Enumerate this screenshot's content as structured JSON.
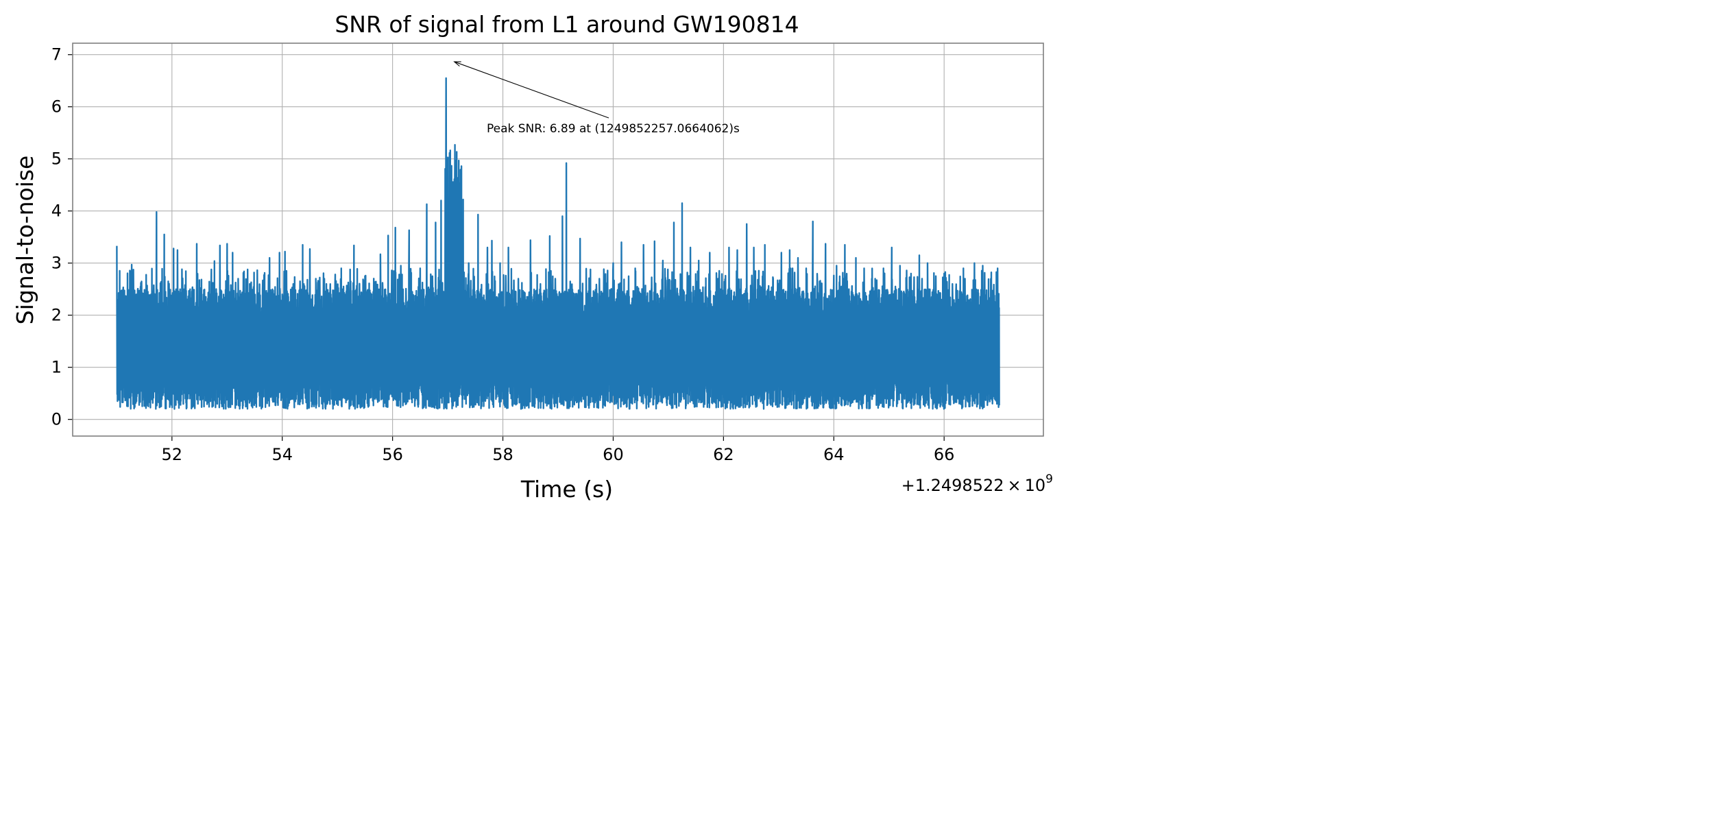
{
  "chart_data": {
    "type": "line",
    "title": "SNR of signal from L1 around GW190814",
    "xlabel": "Time (s)",
    "ylabel": "Signal-to-noise",
    "x_offset_label": "+1.2498522",
    "x_offset_exponent": "9",
    "x_offset_times": "×",
    "x_offset_base": "10",
    "xlim": [
      50.2,
      67.8
    ],
    "ylim": [
      -0.32,
      7.22
    ],
    "xticks": [
      52,
      54,
      56,
      58,
      60,
      62,
      64,
      66
    ],
    "yticks": [
      0,
      1,
      2,
      3,
      4,
      5,
      6,
      7
    ],
    "grid": true,
    "series_color": "#1f77b4",
    "annotation": {
      "text": "Peak SNR: 6.89 at (1249852257.0664062)s",
      "peak_x": 57.07,
      "peak_y": 6.89
    },
    "series": [
      {
        "x_start": 51.0,
        "x_end": 67.0,
        "baseline_band": [
          0.2,
          2.5
        ],
        "spikes": [
          [
            51.0,
            3.33
          ],
          [
            51.1,
            2.45
          ],
          [
            51.27,
            2.97
          ],
          [
            51.43,
            2.55
          ],
          [
            51.55,
            2.57
          ],
          [
            51.72,
            3.98
          ],
          [
            51.86,
            3.55
          ],
          [
            52.03,
            3.28
          ],
          [
            52.1,
            3.25
          ],
          [
            52.18,
            2.3
          ],
          [
            52.37,
            2.52
          ],
          [
            52.45,
            3.37
          ],
          [
            52.57,
            2.4
          ],
          [
            52.77,
            3.04
          ],
          [
            52.87,
            3.34
          ],
          [
            53.0,
            3.37
          ],
          [
            53.1,
            3.2
          ],
          [
            53.2,
            2.7
          ],
          [
            53.41,
            2.6
          ],
          [
            53.58,
            2.23
          ],
          [
            53.77,
            3.1
          ],
          [
            53.95,
            3.2
          ],
          [
            54.05,
            3.22
          ],
          [
            54.2,
            2.6
          ],
          [
            54.37,
            3.35
          ],
          [
            54.5,
            3.27
          ],
          [
            54.65,
            2.66
          ],
          [
            54.8,
            2.6
          ],
          [
            55.07,
            2.9
          ],
          [
            55.3,
            3.34
          ],
          [
            55.5,
            2.75
          ],
          [
            55.78,
            3.17
          ],
          [
            55.92,
            3.53
          ],
          [
            56.05,
            3.68
          ],
          [
            56.15,
            2.95
          ],
          [
            56.3,
            3.63
          ],
          [
            56.5,
            2.9
          ],
          [
            56.62,
            4.13
          ],
          [
            56.78,
            3.78
          ],
          [
            56.88,
            4.2
          ],
          [
            56.97,
            6.55
          ],
          [
            57.02,
            6.2
          ],
          [
            57.07,
            6.89
          ],
          [
            57.13,
            5.27
          ],
          [
            57.22,
            5.18
          ],
          [
            57.28,
            4.22
          ],
          [
            57.38,
            3.0
          ],
          [
            57.55,
            3.93
          ],
          [
            57.72,
            3.3
          ],
          [
            57.8,
            3.43
          ],
          [
            57.95,
            3.0
          ],
          [
            58.1,
            3.3
          ],
          [
            58.28,
            2.7
          ],
          [
            58.5,
            3.44
          ],
          [
            58.68,
            2.6
          ],
          [
            58.85,
            3.52
          ],
          [
            58.95,
            2.7
          ],
          [
            59.08,
            3.9
          ],
          [
            59.15,
            4.92
          ],
          [
            59.4,
            3.47
          ],
          [
            59.75,
            2.7
          ],
          [
            60.0,
            3.0
          ],
          [
            60.15,
            3.4
          ],
          [
            60.4,
            2.9
          ],
          [
            60.55,
            3.35
          ],
          [
            60.75,
            3.42
          ],
          [
            60.9,
            3.05
          ],
          [
            61.1,
            3.78
          ],
          [
            61.25,
            4.15
          ],
          [
            61.4,
            3.3
          ],
          [
            61.55,
            3.05
          ],
          [
            61.75,
            3.2
          ],
          [
            61.9,
            2.7
          ],
          [
            62.1,
            3.3
          ],
          [
            62.25,
            3.25
          ],
          [
            62.42,
            3.75
          ],
          [
            62.55,
            3.3
          ],
          [
            62.75,
            3.35
          ],
          [
            62.9,
            2.7
          ],
          [
            63.05,
            3.2
          ],
          [
            63.2,
            3.25
          ],
          [
            63.35,
            3.1
          ],
          [
            63.5,
            2.9
          ],
          [
            63.62,
            3.8
          ],
          [
            63.85,
            3.37
          ],
          [
            64.05,
            2.95
          ],
          [
            64.2,
            3.35
          ],
          [
            64.4,
            3.1
          ],
          [
            64.55,
            2.9
          ],
          [
            64.75,
            2.7
          ],
          [
            64.9,
            2.9
          ],
          [
            65.05,
            3.3
          ],
          [
            65.2,
            2.95
          ],
          [
            65.4,
            2.8
          ],
          [
            65.55,
            3.15
          ],
          [
            65.7,
            3.0
          ],
          [
            65.85,
            2.75
          ],
          [
            66.0,
            2.8
          ],
          [
            66.15,
            2.6
          ],
          [
            66.35,
            2.9
          ],
          [
            66.55,
            3.0
          ],
          [
            66.7,
            2.95
          ],
          [
            66.85,
            2.5
          ],
          [
            66.97,
            2.9
          ]
        ]
      }
    ]
  }
}
